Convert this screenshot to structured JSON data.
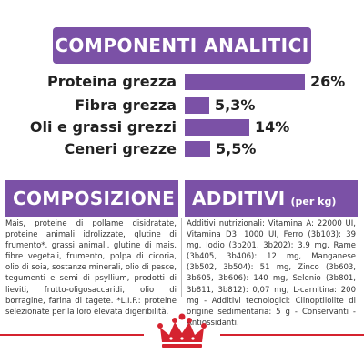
{
  "components": {
    "title": "COMPONENTI ANALITICI",
    "rows": [
      {
        "label": "Proteina grezza",
        "value": "26%",
        "percent": 26
      },
      {
        "label": "Fibra grezza",
        "value": "5,3%",
        "percent": 5.3
      },
      {
        "label": "Oli e grassi grezzi",
        "value": "14%",
        "percent": 14
      },
      {
        "label": "Ceneri grezze",
        "value": "5,5%",
        "percent": 5.5
      }
    ]
  },
  "composition": {
    "title": "COMPOSIZIONE",
    "text": "Mais, proteine di pollame disidratate, proteine animali idrolizzate, glutine di frumento*, grassi animali, glutine di mais, fibre vegetali, frumento, polpa di cicoria, olio di soia, sostanze minerali, olio di pesce, tegumenti e semi di psyllium, prodotti di lieviti, frutto-oligosaccaridi, olio di borragine, farina di tagete. *L.I.P.: proteine selezionate per la loro elevata digeribilità."
  },
  "additives": {
    "title": "ADDITIVI",
    "unit": "(per kg)",
    "text": "Additivi nutrizionali: Vitamina A: 22000 UI, Vitamina D3: 1000 UI, Ferro (3b103): 39 mg, Iodio (3b201, 3b202): 3,9 mg, Rame (3b405, 3b406): 12 mg, Manganese (3b502, 3b504): 51 mg, Zinco (3b603, 3b605, 3b606): 140 mg, Selenio (3b801, 3b811, 3b812): 0,07 mg, L-carnitina: 200 mg - Additivi tecnologici: Clinoptilolite di origine sedimentaria: 5 g - Conservanti - Antiossidanti."
  },
  "colors": {
    "accent": "#7b51a6",
    "footer_line": "#d5232f"
  }
}
